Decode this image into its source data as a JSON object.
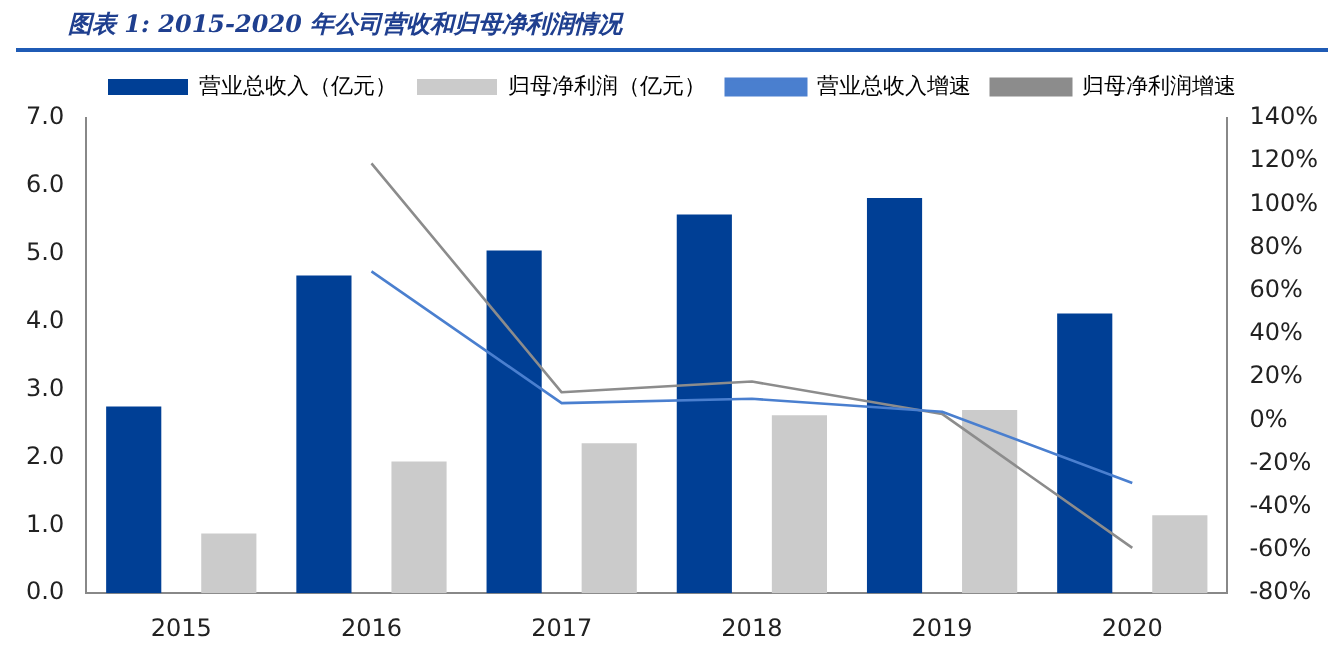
{
  "chart_data": {
    "type": "bar",
    "title": "图表 1:  2015-2020 年公司营收和归母净利润情况",
    "categories": [
      "2015",
      "2016",
      "2017",
      "2018",
      "2019",
      "2020"
    ],
    "series": [
      {
        "name": "营业总收入（亿元）",
        "color": "#003f95",
        "values": [
          2.75,
          4.68,
          5.05,
          5.58,
          5.82,
          4.12
        ]
      },
      {
        "name": "归母净利润（亿元）",
        "color": "#cbcbcb",
        "values": [
          0.88,
          1.94,
          2.21,
          2.62,
          2.7,
          1.15
        ]
      },
      {
        "name": "营业总收入增速",
        "type": "line",
        "axis": "y2",
        "color": "#4a7fcf",
        "values": [
          null,
          69,
          8,
          10,
          4,
          -29
        ]
      },
      {
        "name": "归母净利润增速",
        "type": "line",
        "axis": "y2",
        "color": "#8c8c8c",
        "values": [
          null,
          119,
          13,
          18,
          3,
          -59
        ]
      }
    ],
    "ylim": [
      0,
      7
    ],
    "yticks": [
      {
        "value": 0,
        "label": "0.0"
      },
      {
        "value": 1,
        "label": "1.0"
      },
      {
        "value": 2,
        "label": "2.0"
      },
      {
        "value": 3,
        "label": "3.0"
      },
      {
        "value": 4,
        "label": "4.0"
      },
      {
        "value": 5,
        "label": "5.0"
      },
      {
        "value": 6,
        "label": "6.0"
      },
      {
        "value": 7,
        "label": "7.0"
      }
    ],
    "y2lim": [
      -80,
      140
    ],
    "y2ticks": [
      {
        "value": -80,
        "label": "-80%"
      },
      {
        "value": -60,
        "label": "-60%"
      },
      {
        "value": -40,
        "label": "-40%"
      },
      {
        "value": -20,
        "label": "-20%"
      },
      {
        "value": 0,
        "label": "0%"
      },
      {
        "value": 20,
        "label": "20%"
      },
      {
        "value": 40,
        "label": "40%"
      },
      {
        "value": 60,
        "label": "60%"
      },
      {
        "value": 80,
        "label": "80%"
      },
      {
        "value": 100,
        "label": "100%"
      },
      {
        "value": 120,
        "label": "120%"
      },
      {
        "value": 140,
        "label": "140%"
      }
    ],
    "grid": false,
    "legend": "top",
    "marker": "none",
    "line_style": "solid"
  }
}
